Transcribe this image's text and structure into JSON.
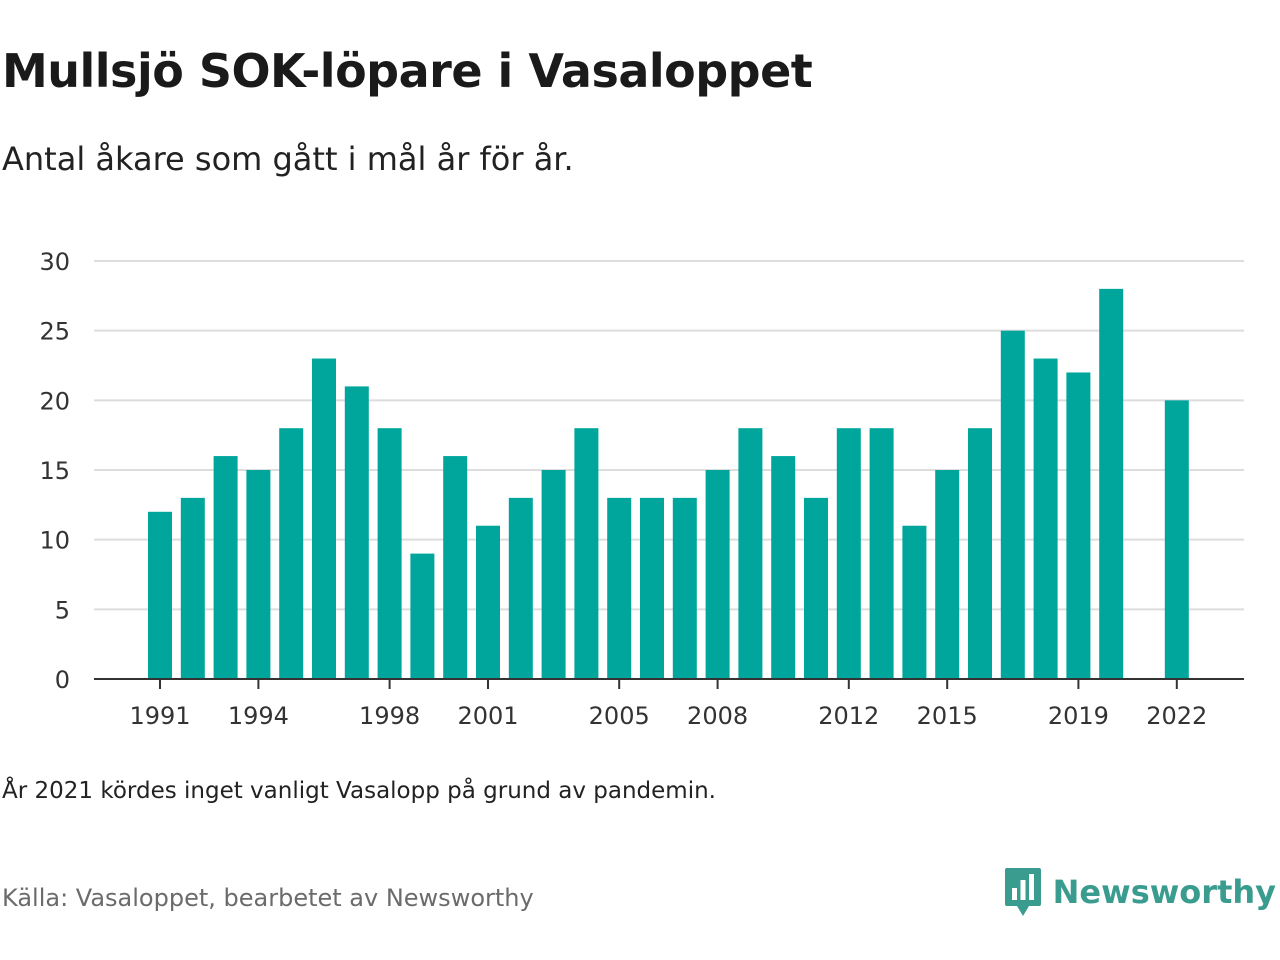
{
  "header": {
    "title": "Mullsjö SOK-löpare i Vasaloppet",
    "subtitle": "Antal åkare som gått i mål år för år."
  },
  "footer": {
    "note": "År 2021 kördes inget vanligt Vasalopp på grund av pandemin.",
    "source": "Källa: Vasaloppet, bearbetet av Newsworthy",
    "brand_name": "Newsworthy"
  },
  "colors": {
    "bar": "#00a69c",
    "grid": "#dddddd",
    "axis": "#333333",
    "brand": "#3a9b8f"
  },
  "chart_data": {
    "type": "bar",
    "categories": [
      1991,
      1992,
      1993,
      1994,
      1995,
      1996,
      1997,
      1998,
      1999,
      2000,
      2001,
      2002,
      2003,
      2004,
      2005,
      2006,
      2007,
      2008,
      2009,
      2010,
      2011,
      2012,
      2013,
      2014,
      2015,
      2016,
      2017,
      2018,
      2019,
      2020,
      2021,
      2022
    ],
    "values": [
      12,
      13,
      16,
      15,
      18,
      23,
      21,
      18,
      9,
      16,
      11,
      13,
      15,
      18,
      13,
      13,
      13,
      15,
      18,
      16,
      13,
      18,
      18,
      11,
      15,
      18,
      25,
      23,
      22,
      28,
      null,
      20
    ],
    "x_tick_labels": [
      "1991",
      "1994",
      "1998",
      "2001",
      "2005",
      "2008",
      "2012",
      "2015",
      "2019",
      "2022"
    ],
    "y_tick_labels": [
      "0",
      "5",
      "10",
      "15",
      "20",
      "25",
      "30"
    ],
    "y_ticks": [
      0,
      5,
      10,
      15,
      20,
      25,
      30
    ],
    "ylim": [
      0,
      30
    ],
    "grid": true,
    "legend": "none"
  }
}
